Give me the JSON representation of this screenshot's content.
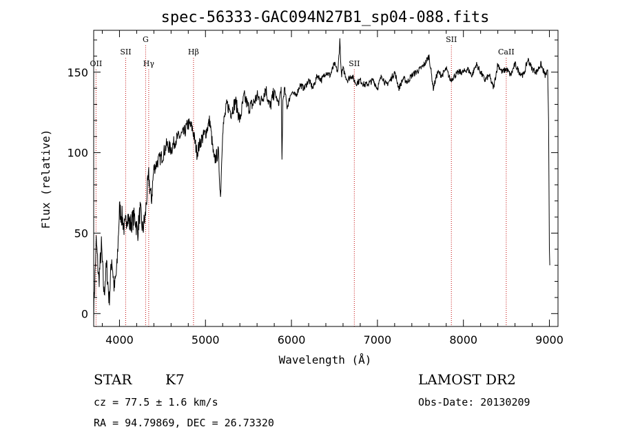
{
  "chart_data": {
    "type": "line",
    "title": "spec-56333-GAC094N27B1_sp04-088.fits",
    "xlabel": "Wavelength (Å)",
    "ylabel": "Flux (relative)",
    "xlim": [
      3700,
      9100
    ],
    "ylim": [
      -8,
      176
    ],
    "x_ticks": [
      4000,
      5000,
      6000,
      7000,
      8000,
      9000
    ],
    "y_ticks": [
      0,
      50,
      100,
      150
    ],
    "grid": false,
    "spectral_lines": [
      {
        "name": "OII",
        "wavelength": 3727,
        "label_row": 1
      },
      {
        "name": "SII",
        "wavelength": 4072,
        "label_row": 0
      },
      {
        "name": "Hγ",
        "wavelength": 4340,
        "label_row": 1
      },
      {
        "name": "G",
        "wavelength": 4304,
        "label_row": 2
      },
      {
        "name": "Hβ",
        "wavelength": 4861,
        "label_row": 0
      },
      {
        "name": "SII",
        "wavelength": 6731,
        "label_row": 1
      },
      {
        "name": "SII",
        "wavelength": 7860,
        "label_row": 2
      },
      {
        "name": "CaII",
        "wavelength": 8498,
        "label_row": 0
      }
    ],
    "series": [
      {
        "x": [
          3700,
          3730,
          3760,
          3790,
          3820,
          3850,
          3880,
          3910,
          3940,
          3970,
          4000,
          4030,
          4060,
          4090,
          4120,
          4150,
          4180,
          4210,
          4240,
          4270,
          4300,
          4320,
          4340,
          4370,
          4400,
          4450,
          4500,
          4550,
          4600,
          4650,
          4700,
          4750,
          4800,
          4850,
          4900,
          4950,
          5000,
          5050,
          5100,
          5150,
          5175,
          5200,
          5250,
          5300,
          5350,
          5400,
          5450,
          5500,
          5550,
          5600,
          5650,
          5700,
          5750,
          5800,
          5850,
          5880,
          5890,
          5900,
          5920,
          5950,
          6000,
          6050,
          6100,
          6150,
          6200,
          6250,
          6300,
          6350,
          6400,
          6450,
          6500,
          6540,
          6563,
          6580,
          6600,
          6650,
          6700,
          6750,
          6800,
          6850,
          6900,
          6950,
          7000,
          7050,
          7100,
          7150,
          7200,
          7250,
          7300,
          7350,
          7400,
          7450,
          7500,
          7550,
          7600,
          7650,
          7700,
          7750,
          7800,
          7850,
          7900,
          7950,
          8000,
          8050,
          8100,
          8150,
          8200,
          8250,
          8300,
          8350,
          8400,
          8450,
          8500,
          8550,
          8600,
          8650,
          8700,
          8750,
          8800,
          8850,
          8900,
          8950,
          8980,
          8990,
          9000,
          9005
        ],
        "y": [
          2,
          45,
          20,
          42,
          12,
          30,
          8,
          35,
          15,
          28,
          65,
          60,
          52,
          62,
          55,
          58,
          60,
          50,
          64,
          52,
          60,
          75,
          85,
          70,
          90,
          95,
          98,
          105,
          102,
          108,
          110,
          112,
          118,
          115,
          100,
          108,
          112,
          120,
          95,
          100,
          72,
          115,
          130,
          125,
          132,
          120,
          135,
          128,
          130,
          135,
          132,
          140,
          128,
          138,
          130,
          140,
          95,
          132,
          140,
          128,
          138,
          135,
          142,
          140,
          145,
          140,
          148,
          145,
          150,
          148,
          155,
          150,
          170,
          148,
          152,
          145,
          148,
          143,
          145,
          142,
          143,
          145,
          140,
          148,
          142,
          145,
          150,
          140,
          146,
          144,
          148,
          150,
          152,
          155,
          160,
          140,
          150,
          148,
          152,
          145,
          148,
          150,
          150,
          152,
          148,
          155,
          150,
          145,
          148,
          140,
          155,
          150,
          152,
          148,
          155,
          150,
          148,
          158,
          152,
          150,
          155,
          148,
          150,
          120,
          40,
          30
        ]
      }
    ]
  },
  "info": {
    "class": "STAR",
    "subclass": "K7",
    "survey": "LAMOST DR2",
    "cz": "cz = 77.5 ± 1.6 km/s",
    "obsdate": "Obs-Date: 20130209",
    "radec": "RA =  94.79869, DEC =  26.73320"
  }
}
